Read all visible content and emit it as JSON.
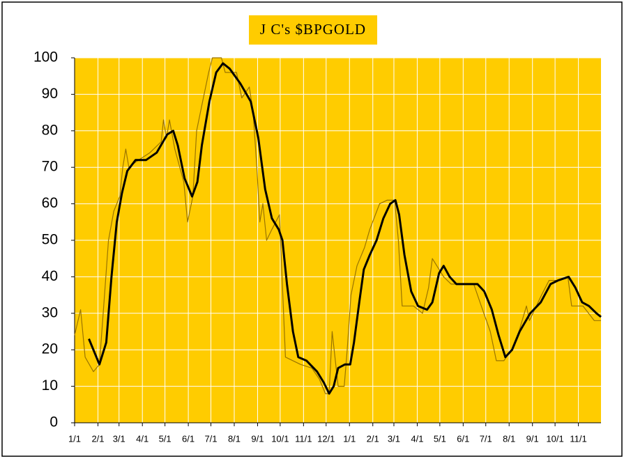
{
  "chart_data": {
    "type": "line",
    "title": "J C's $BPGOLD",
    "xlim": [
      0,
      699
    ],
    "ylim": [
      0,
      100
    ],
    "yticks": [
      0,
      10,
      20,
      30,
      40,
      50,
      60,
      70,
      80,
      90,
      100
    ],
    "xticks": [
      {
        "value": 0,
        "label": "1/1"
      },
      {
        "value": 31,
        "label": "2/1"
      },
      {
        "value": 59,
        "label": "3/1"
      },
      {
        "value": 90,
        "label": "4/1"
      },
      {
        "value": 120,
        "label": "5/1"
      },
      {
        "value": 151,
        "label": "6/1"
      },
      {
        "value": 181,
        "label": "7/1"
      },
      {
        "value": 212,
        "label": "8/1"
      },
      {
        "value": 243,
        "label": "9/1"
      },
      {
        "value": 273,
        "label": "10/1"
      },
      {
        "value": 304,
        "label": "11/1"
      },
      {
        "value": 334,
        "label": "12/1"
      },
      {
        "value": 365,
        "label": "1/1"
      },
      {
        "value": 396,
        "label": "2/1"
      },
      {
        "value": 424,
        "label": "3/1"
      },
      {
        "value": 455,
        "label": "4/1"
      },
      {
        "value": 485,
        "label": "5/1"
      },
      {
        "value": 516,
        "label": "6/1"
      },
      {
        "value": 546,
        "label": "7/1"
      },
      {
        "value": 577,
        "label": "8/1"
      },
      {
        "value": 608,
        "label": "9/1"
      },
      {
        "value": 638,
        "label": "10/1"
      },
      {
        "value": 669,
        "label": "11/1"
      }
    ],
    "grid": true,
    "plot_background": "#ffcc00",
    "series": [
      {
        "color": "#9a7400",
        "width": 1.2,
        "x": [
          0,
          8,
          14,
          25,
          33,
          38,
          45,
          52,
          60,
          64,
          68,
          72,
          85,
          100,
          115,
          118,
          122,
          126,
          133,
          145,
          150,
          157,
          162,
          170,
          178,
          183,
          195,
          200,
          215,
          222,
          232,
          237,
          242,
          246,
          250,
          255,
          262,
          272,
          280,
          290,
          300,
          315,
          325,
          333,
          338,
          342,
          350,
          358,
          362,
          367,
          375,
          385,
          392,
          405,
          415,
          425,
          430,
          435,
          450,
          462,
          470,
          475,
          490,
          500,
          530,
          540,
          552,
          560,
          570,
          580,
          590,
          600,
          604,
          620,
          630,
          645,
          655,
          660,
          675,
          690,
          699
        ],
        "values": [
          24,
          31,
          18,
          14,
          16,
          30,
          50,
          58,
          62,
          70,
          75,
          70,
          72,
          74,
          77,
          83,
          78,
          83,
          75,
          66,
          55,
          62,
          80,
          88,
          96,
          100,
          100,
          96,
          96,
          89,
          92,
          85,
          70,
          55,
          60,
          50,
          53,
          57,
          18,
          17,
          16,
          15,
          12,
          8,
          8,
          25,
          10,
          10,
          20,
          35,
          43,
          48,
          53,
          60,
          61,
          61,
          50,
          32,
          32,
          30,
          37,
          45,
          40,
          38,
          38,
          32,
          25,
          17,
          17,
          20,
          25,
          32,
          28,
          35,
          39,
          39,
          40,
          32,
          32,
          28,
          28
        ]
      },
      {
        "color": "#000000",
        "width": 3,
        "x": [
          19,
          33,
          42,
          49,
          56,
          63,
          70,
          81,
          95,
          109,
          123,
          131,
          137,
          146,
          156,
          163,
          169,
          179,
          188,
          197,
          206,
          220,
          234,
          244,
          253,
          262,
          271,
          276,
          282,
          290,
          297,
          308,
          322,
          331,
          338,
          344,
          350,
          359,
          366,
          371,
          378,
          384,
          392,
          401,
          410,
          419,
          426,
          431,
          438,
          447,
          456,
          468,
          475,
          484,
          490,
          498,
          507,
          521,
          535,
          544,
          554,
          563,
          572,
          581,
          591,
          605,
          619,
          632,
          642,
          656,
          665,
          674,
          683,
          693,
          699
        ],
        "values": [
          23,
          16,
          22,
          40,
          55,
          63,
          69,
          72,
          72,
          74,
          79,
          80,
          76,
          67,
          62,
          66,
          76,
          88,
          96,
          98.5,
          97,
          93,
          88,
          78,
          64,
          56,
          53,
          50,
          38,
          25,
          18,
          17,
          14,
          11,
          8,
          10,
          15,
          16,
          16,
          22,
          33,
          42,
          46,
          50,
          56,
          60,
          61,
          57,
          46,
          36,
          32,
          31,
          33,
          41,
          43,
          40,
          38,
          38,
          38,
          36,
          31,
          24,
          18,
          20,
          25,
          30,
          33,
          38,
          39,
          40,
          37,
          33,
          32,
          30,
          29
        ]
      }
    ]
  }
}
